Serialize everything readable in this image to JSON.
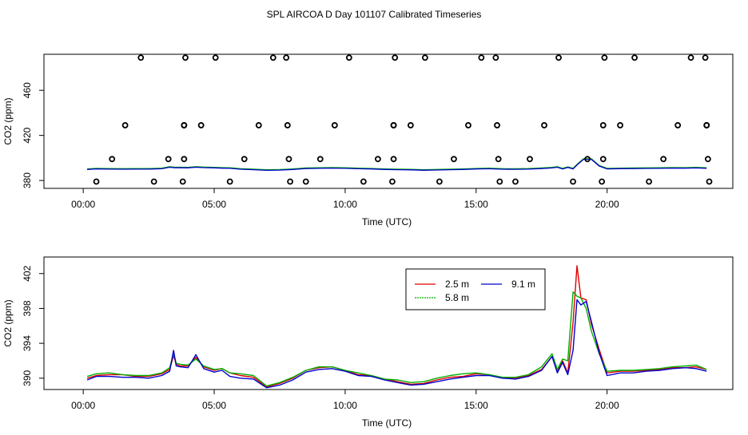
{
  "title": "SPL AIRCOA D  Day 101107  Calibrated Timeseries",
  "colors": {
    "red": "#e00000",
    "green": "#00b000",
    "blue": "#0000cc",
    "black": "#000000"
  },
  "chart_data": [
    {
      "type": "scatter",
      "title": "",
      "xlabel": "Time (UTC)",
      "ylabel": "CO2 (ppm)",
      "xlim": [
        -1.5,
        24.8
      ],
      "ylim": [
        373,
        492
      ],
      "xticks": [
        0,
        5,
        10,
        15,
        20
      ],
      "xtick_labels": [
        "00:00",
        "05:00",
        "10:00",
        "15:00",
        "20:00"
      ],
      "yticks": [
        380,
        420,
        460
      ],
      "ytick_labels": [
        "380",
        "420",
        "460"
      ],
      "circles": [
        [
          0.5,
          379
        ],
        [
          1.1,
          399
        ],
        [
          1.6,
          429
        ],
        [
          2.2,
          489
        ],
        [
          2.7,
          379
        ],
        [
          3.25,
          399
        ],
        [
          3.8,
          379
        ],
        [
          3.85,
          399
        ],
        [
          3.85,
          429
        ],
        [
          3.85,
          429
        ],
        [
          3.9,
          489
        ],
        [
          4.5,
          429
        ],
        [
          5.05,
          489
        ],
        [
          5.6,
          379
        ],
        [
          6.15,
          399
        ],
        [
          6.7,
          429
        ],
        [
          7.25,
          489
        ],
        [
          7.75,
          489
        ],
        [
          7.8,
          429
        ],
        [
          7.85,
          399
        ],
        [
          7.9,
          379
        ],
        [
          8.5,
          379
        ],
        [
          9.05,
          399
        ],
        [
          9.6,
          429
        ],
        [
          10.15,
          489
        ],
        [
          10.7,
          379
        ],
        [
          11.25,
          399
        ],
        [
          11.8,
          379
        ],
        [
          11.85,
          399
        ],
        [
          11.85,
          429
        ],
        [
          11.85,
          429
        ],
        [
          11.9,
          489
        ],
        [
          12.5,
          429
        ],
        [
          13.05,
          489
        ],
        [
          13.6,
          379
        ],
        [
          14.15,
          399
        ],
        [
          14.7,
          429
        ],
        [
          15.2,
          489
        ],
        [
          15.75,
          489
        ],
        [
          15.8,
          429
        ],
        [
          15.85,
          399
        ],
        [
          15.9,
          379
        ],
        [
          16.5,
          379
        ],
        [
          17.05,
          399
        ],
        [
          17.6,
          429
        ],
        [
          18.15,
          489
        ],
        [
          18.7,
          379
        ],
        [
          19.25,
          399
        ],
        [
          19.8,
          379
        ],
        [
          19.85,
          399
        ],
        [
          19.85,
          429
        ],
        [
          19.9,
          489
        ],
        [
          20.5,
          429
        ],
        [
          21.05,
          489
        ],
        [
          21.6,
          379
        ],
        [
          22.15,
          399
        ],
        [
          22.7,
          429
        ],
        [
          23.2,
          489
        ],
        [
          23.75,
          489
        ],
        [
          23.8,
          429
        ],
        [
          23.8,
          429
        ],
        [
          23.85,
          399
        ],
        [
          23.9,
          379
        ]
      ],
      "series": [
        {
          "name": "2.5 m",
          "color": "#e00000",
          "offset": 0
        },
        {
          "name": "5.8 m",
          "color": "#00b000",
          "offset": 0.3
        },
        {
          "name": "9.1 m",
          "color": "#0000cc",
          "offset": -0.2
        }
      ],
      "x": [
        0.15,
        0.5,
        1,
        1.5,
        2,
        2.5,
        3,
        3.3,
        3.5,
        3.7,
        4,
        4.3,
        4.6,
        5,
        5.3,
        5.6,
        6,
        6.5,
        7,
        7.5,
        8,
        8.5,
        9,
        9.5,
        10,
        10.5,
        11,
        11.5,
        12,
        12.5,
        13,
        13.5,
        14,
        14.5,
        15,
        15.5,
        16,
        16.5,
        17,
        17.5,
        17.9,
        18.1,
        18.3,
        18.5,
        18.7,
        18.9,
        19.1,
        19.4,
        19.7,
        20,
        20.5,
        21,
        21.5,
        22,
        22.5,
        23,
        23.4,
        23.8
      ],
      "base": [
        390,
        390.5,
        390.3,
        390.2,
        390.3,
        390.3,
        390.6,
        392,
        391.5,
        391.5,
        391.4,
        392,
        391.6,
        391.4,
        391.1,
        391,
        390.2,
        389.8,
        389.2,
        389.4,
        390,
        390.8,
        391,
        391.2,
        391,
        390.6,
        390.4,
        390,
        389.8,
        389.6,
        389.3,
        389.5,
        389.8,
        390,
        390.4,
        390.6,
        390.2,
        390.1,
        390.3,
        390.8,
        391.3,
        392,
        390.4,
        391.8,
        390.5,
        395,
        399,
        399,
        393,
        390.5,
        390.7,
        390.8,
        390.9,
        391,
        391.2,
        391.1,
        391.3,
        391
      ],
      "plot_ylim": [
        390,
        392
      ]
    },
    {
      "type": "line",
      "title": "",
      "xlabel": "Time (UTC)",
      "ylabel": "CO2 (ppm)",
      "xlim": [
        -1.5,
        24.8
      ],
      "ylim": [
        388.7,
        403.9
      ],
      "xticks": [
        0,
        5,
        10,
        15,
        20
      ],
      "xtick_labels": [
        "00:00",
        "05:00",
        "10:00",
        "15:00",
        "20:00"
      ],
      "yticks": [
        390,
        394,
        398,
        402
      ],
      "ytick_labels": [
        "390",
        "394",
        "398",
        "402"
      ],
      "x": [
        0.15,
        0.5,
        1,
        1.5,
        2,
        2.5,
        3,
        3.3,
        3.45,
        3.55,
        3.7,
        4,
        4.3,
        4.6,
        5,
        5.3,
        5.6,
        6,
        6.5,
        7,
        7.5,
        8,
        8.5,
        9,
        9.5,
        10,
        10.5,
        11,
        11.5,
        12,
        12.5,
        13,
        13.5,
        14,
        14.5,
        15,
        15.5,
        16,
        16.5,
        17,
        17.5,
        17.9,
        18.1,
        18.3,
        18.5,
        18.7,
        18.85,
        19.0,
        19.2,
        19.4,
        19.7,
        20,
        20.5,
        21,
        21.5,
        22,
        22.5,
        23,
        23.4,
        23.8
      ],
      "series": [
        {
          "name": "2.5 m",
          "color": "#e00000",
          "values": [
            390.0,
            390.3,
            390.4,
            390.4,
            390.2,
            390.2,
            390.5,
            391.0,
            392.6,
            391.6,
            391.4,
            391.4,
            392.4,
            391.3,
            390.9,
            391.1,
            390.6,
            390.3,
            390.1,
            389.0,
            389.4,
            390.0,
            390.9,
            391.2,
            391.3,
            390.9,
            390.4,
            390.3,
            389.9,
            389.6,
            389.3,
            389.4,
            389.8,
            390.1,
            390.2,
            390.5,
            390.4,
            390.1,
            390.0,
            390.3,
            391.0,
            392.5,
            390.8,
            392.0,
            390.6,
            396.4,
            402.9,
            399.2,
            399.0,
            396.2,
            393.3,
            390.6,
            390.8,
            390.8,
            390.9,
            391.0,
            391.2,
            391.2,
            391.3,
            391.0
          ]
        },
        {
          "name": "5.8 m",
          "color": "#00b000",
          "values": [
            390.2,
            390.5,
            390.6,
            390.4,
            390.3,
            390.3,
            390.6,
            391.2,
            392.8,
            391.7,
            391.6,
            391.5,
            392.2,
            391.4,
            391.0,
            391.1,
            390.6,
            390.5,
            390.3,
            389.1,
            389.5,
            390.1,
            390.9,
            391.3,
            391.3,
            390.9,
            390.6,
            390.3,
            389.9,
            389.8,
            389.5,
            389.6,
            390.0,
            390.3,
            390.5,
            390.6,
            390.4,
            390.1,
            390.1,
            390.4,
            391.3,
            392.8,
            391.0,
            392.2,
            392.0,
            399.9,
            399.4,
            399.2,
            398.0,
            395.4,
            392.8,
            390.8,
            390.9,
            390.9,
            391.0,
            391.1,
            391.3,
            391.4,
            391.5,
            391.0
          ]
        },
        {
          "name": "9.1 m",
          "color": "#0000cc",
          "values": [
            389.8,
            390.2,
            390.2,
            390.1,
            390.1,
            390.0,
            390.3,
            390.8,
            393.2,
            391.4,
            391.3,
            391.2,
            392.7,
            391.1,
            390.7,
            390.9,
            390.2,
            390.0,
            389.9,
            388.9,
            389.2,
            389.8,
            390.7,
            391.0,
            391.1,
            390.8,
            390.3,
            390.2,
            389.8,
            389.5,
            389.2,
            389.3,
            389.6,
            389.9,
            390.1,
            390.3,
            390.3,
            390.0,
            389.9,
            390.2,
            390.9,
            392.5,
            390.6,
            391.8,
            390.4,
            393.2,
            399.0,
            398.4,
            398.8,
            396.5,
            392.9,
            390.3,
            390.6,
            390.6,
            390.8,
            390.9,
            391.1,
            391.2,
            391.1,
            390.8
          ]
        }
      ],
      "legend": {
        "placement": "top-right-center",
        "entries": [
          "2.5 m",
          "5.8 m",
          "9.1 m"
        ]
      }
    }
  ]
}
